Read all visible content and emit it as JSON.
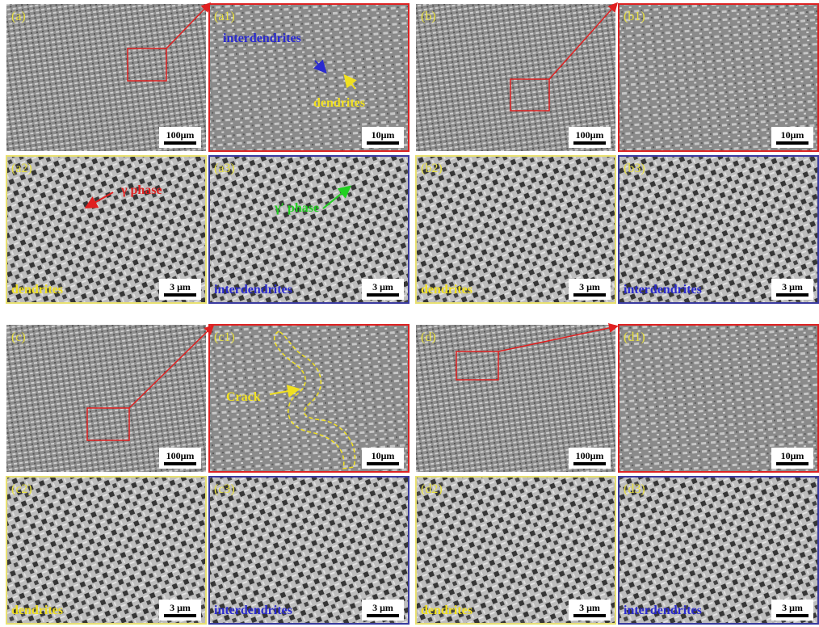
{
  "panels": [
    {
      "label": "(a)",
      "scale_bar": "100μm"
    },
    {
      "label": "(a1)",
      "scale_bar": "10μm",
      "annotations": [
        "interdendrites",
        "dendrites"
      ]
    },
    {
      "label": "(a2)",
      "scale_bar": "3 μm",
      "caption": "dendrites",
      "annotations": [
        "γ phase"
      ]
    },
    {
      "label": "(a3)",
      "scale_bar": "3 μm",
      "caption": "interdendrites",
      "annotations": [
        "γ′ phase"
      ]
    },
    {
      "label": "(b)",
      "scale_bar": "100μm"
    },
    {
      "label": "(b1)",
      "scale_bar": "10μm"
    },
    {
      "label": "(b2)",
      "scale_bar": "3 μm",
      "caption": "dendrites"
    },
    {
      "label": "(b3)",
      "scale_bar": "3 μm",
      "caption": "interdendrites"
    },
    {
      "label": "(c)",
      "scale_bar": "100μm"
    },
    {
      "label": "(c1)",
      "scale_bar": "10μm",
      "annotations": [
        "Crack"
      ]
    },
    {
      "label": "(c2)",
      "scale_bar": "3 μm",
      "caption": "dendrites"
    },
    {
      "label": "(c3)",
      "scale_bar": "3 μm",
      "caption": "interdendrites"
    },
    {
      "label": "(d)",
      "scale_bar": "100μm"
    },
    {
      "label": "(d1)",
      "scale_bar": "10μm"
    },
    {
      "label": "(d2)",
      "scale_bar": "3 μm",
      "caption": "dendrites"
    },
    {
      "label": "(d3)",
      "scale_bar": "3 μm",
      "caption": "interdendrites"
    }
  ]
}
